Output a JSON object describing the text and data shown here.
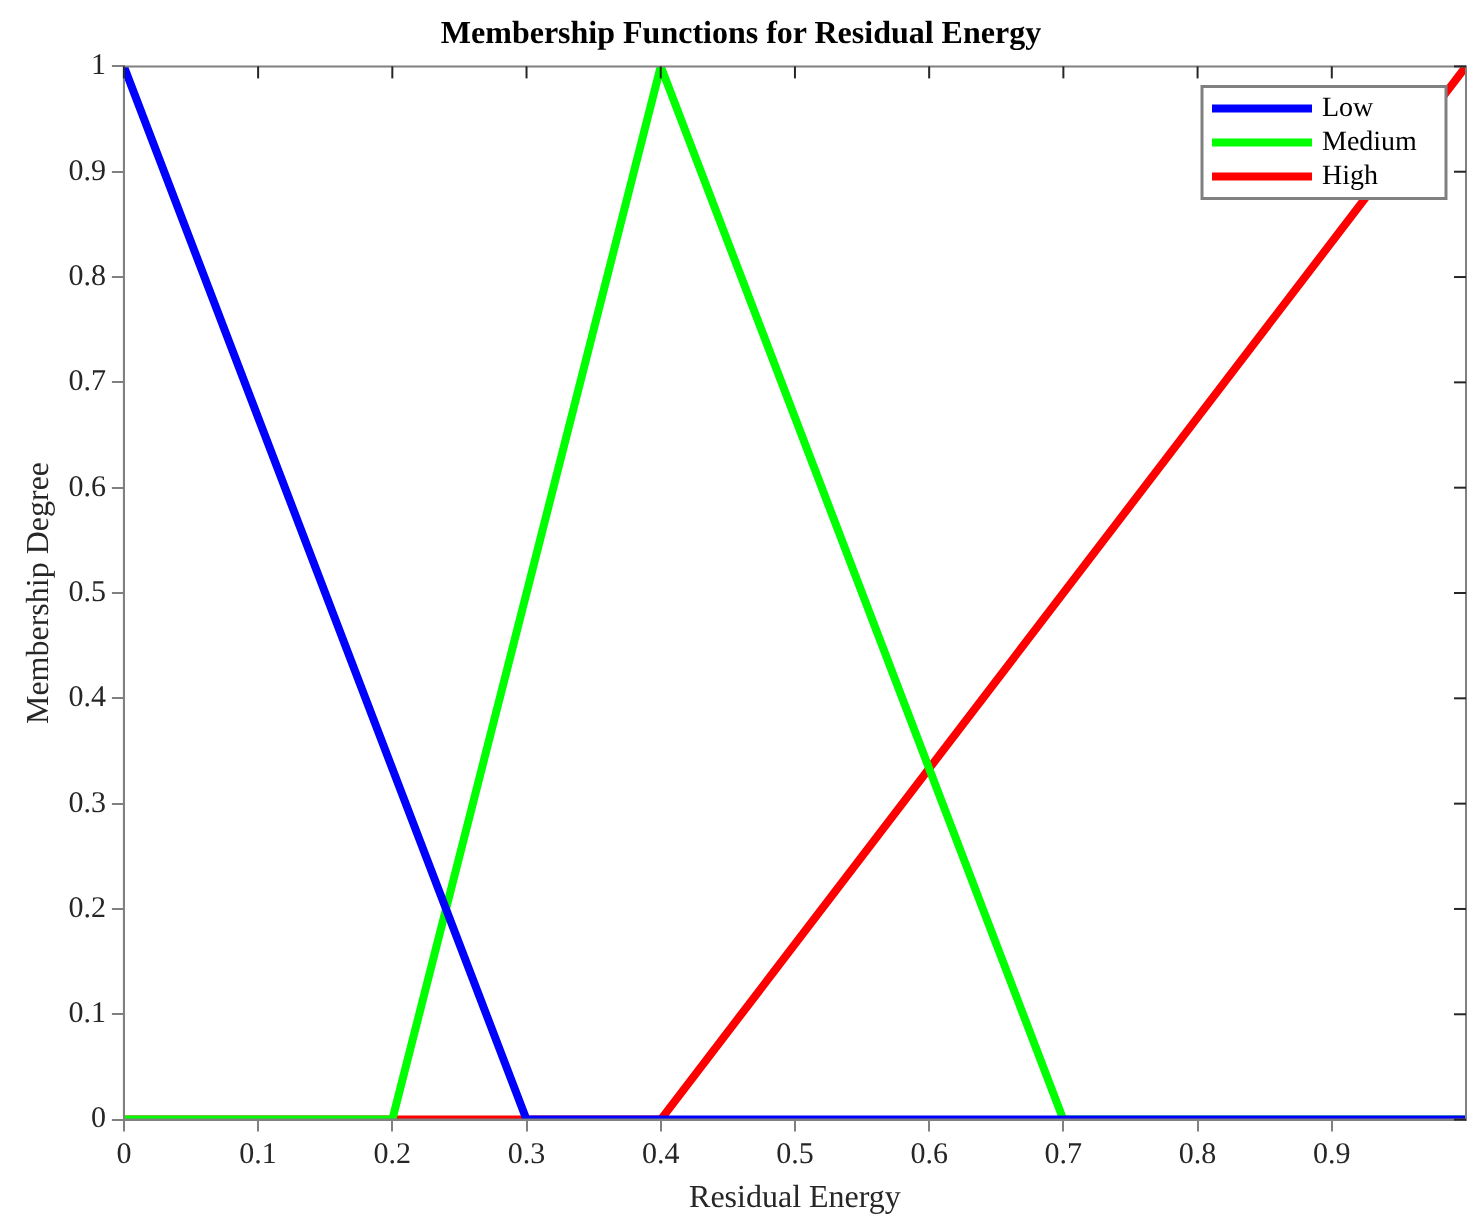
{
  "chart_data": {
    "type": "line",
    "title": "Membership Functions for Residual Energy",
    "xlabel": "Residual Energy",
    "ylabel": "Membership Degree",
    "xlim": [
      0,
      1
    ],
    "xticks": [
      0,
      0.1,
      0.2,
      0.3,
      0.4,
      0.5,
      0.6,
      0.7,
      0.8,
      0.9
    ],
    "ylim": [
      0,
      1
    ],
    "yticks": [
      0,
      0.1,
      0.2,
      0.3,
      0.4,
      0.5,
      0.6,
      0.7,
      0.8,
      0.9,
      1
    ],
    "grid": false,
    "legend": "top right",
    "marker": "none",
    "line_style": "solid",
    "series": [
      {
        "name": "Low",
        "color": "#0000ff",
        "x": [
          0,
          0.3,
          1
        ],
        "values": [
          1,
          0,
          0
        ]
      },
      {
        "name": "Medium",
        "color": "#00ff00",
        "x": [
          0,
          0.2,
          0.4,
          0.7,
          1
        ],
        "values": [
          0,
          0,
          1,
          0,
          0
        ]
      },
      {
        "name": "High",
        "color": "#ff0000",
        "x": [
          0,
          0.4,
          1
        ],
        "values": [
          0,
          0,
          1
        ]
      }
    ]
  }
}
